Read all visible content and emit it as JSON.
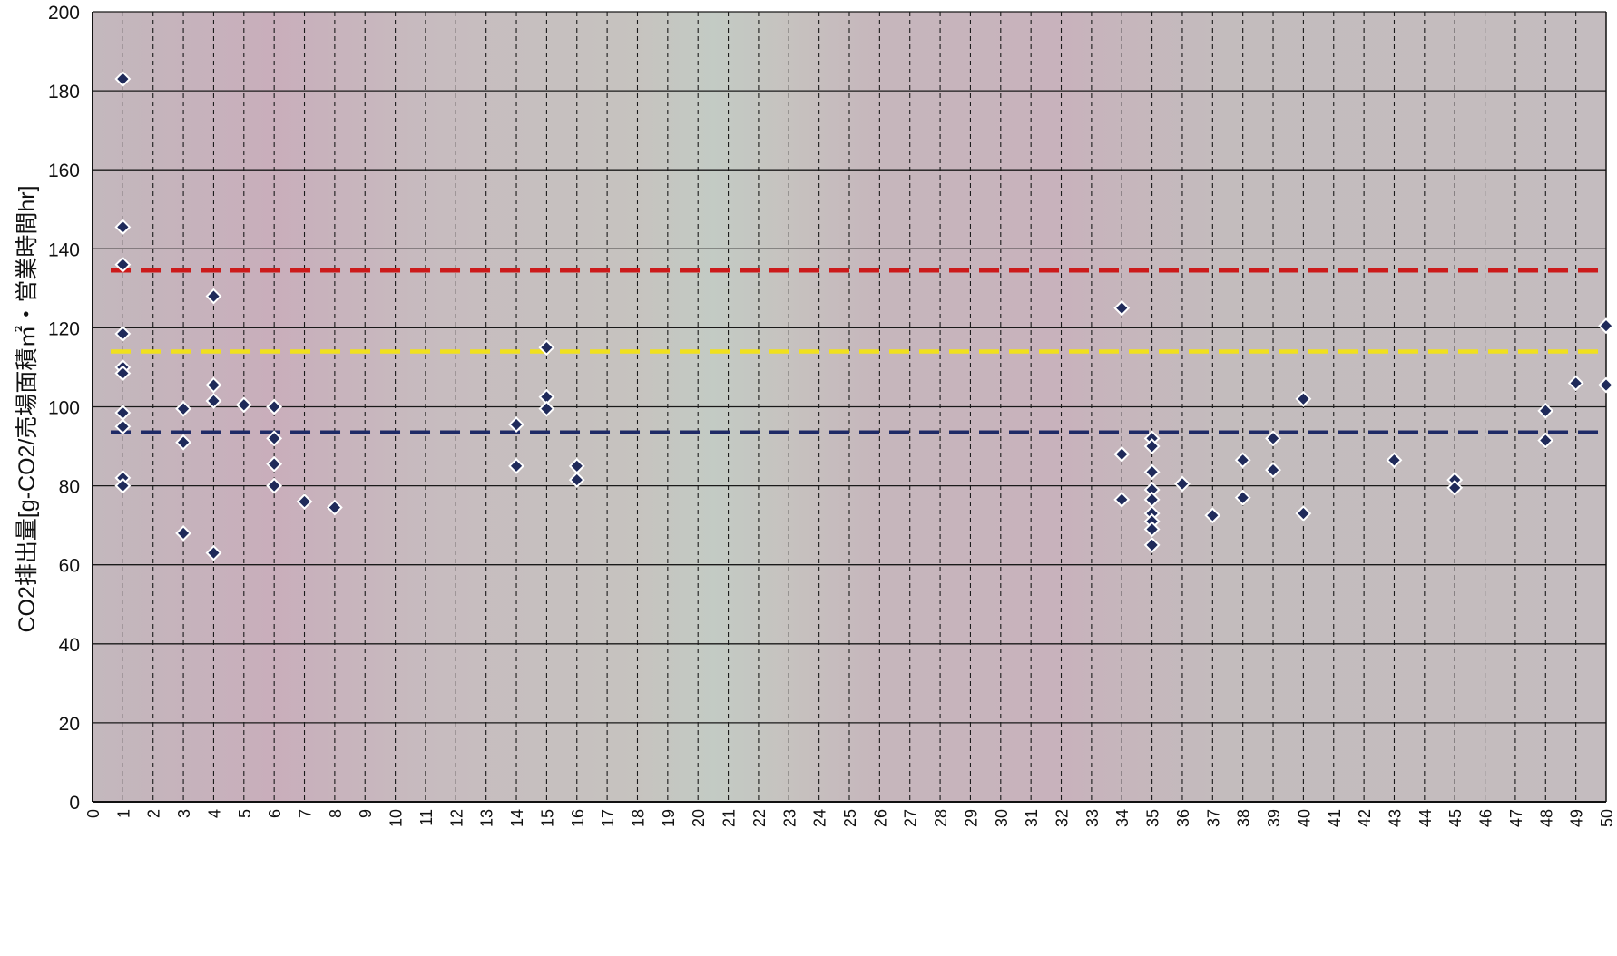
{
  "chart_data": {
    "type": "scatter",
    "title": "",
    "xlabel": "",
    "ylabel": "CO2排出量[g-CO2/売場面積㎡・営業時間hr]",
    "xlim": [
      0,
      50
    ],
    "ylim": [
      0,
      200
    ],
    "x_ticks": [
      0,
      1,
      2,
      3,
      4,
      5,
      6,
      7,
      8,
      9,
      10,
      11,
      12,
      13,
      14,
      15,
      16,
      17,
      18,
      19,
      20,
      21,
      22,
      23,
      24,
      25,
      26,
      27,
      28,
      29,
      30,
      31,
      32,
      33,
      34,
      35,
      36,
      37,
      38,
      39,
      40,
      41,
      42,
      43,
      44,
      45,
      46,
      47,
      48,
      49,
      50
    ],
    "y_ticks": [
      0,
      20,
      40,
      60,
      80,
      100,
      120,
      140,
      160,
      180,
      200
    ],
    "grid": {
      "horizontal": "solid",
      "vertical": "dashed"
    },
    "colors": {
      "plot_background": "#c4b9bd",
      "marker_fill": "#1f2a5a",
      "marker_edge": "#ffffff",
      "grid": "#1a1a1a"
    },
    "series": [
      {
        "marker": "diamond",
        "points": [
          [
            1,
            183
          ],
          [
            1,
            145.5
          ],
          [
            1,
            136
          ],
          [
            1,
            118.5
          ],
          [
            1,
            110
          ],
          [
            1,
            108.5
          ],
          [
            1,
            98.5
          ],
          [
            1,
            95
          ],
          [
            1,
            82
          ],
          [
            1,
            80
          ],
          [
            3,
            99.5
          ],
          [
            3,
            91
          ],
          [
            3,
            68
          ],
          [
            4,
            128
          ],
          [
            4,
            105.5
          ],
          [
            4,
            101.5
          ],
          [
            4,
            63
          ],
          [
            5,
            100.5
          ],
          [
            6,
            100
          ],
          [
            6,
            92
          ],
          [
            6,
            85.5
          ],
          [
            6,
            80
          ],
          [
            7,
            76
          ],
          [
            8,
            74.5
          ],
          [
            14,
            95.5
          ],
          [
            14,
            85
          ],
          [
            15,
            115
          ],
          [
            15,
            102.5
          ],
          [
            15,
            99.5
          ],
          [
            16,
            85
          ],
          [
            16,
            81.5
          ],
          [
            34,
            125
          ],
          [
            34,
            88
          ],
          [
            34,
            76.5
          ],
          [
            35,
            92
          ],
          [
            35,
            90
          ],
          [
            35,
            83.5
          ],
          [
            35,
            79
          ],
          [
            35,
            76.5
          ],
          [
            35,
            73
          ],
          [
            35,
            71
          ],
          [
            35,
            69
          ],
          [
            35,
            65
          ],
          [
            36,
            80.5
          ],
          [
            37,
            72.5
          ],
          [
            38,
            86.5
          ],
          [
            38,
            77
          ],
          [
            39,
            92
          ],
          [
            39,
            84
          ],
          [
            40,
            102
          ],
          [
            40,
            73
          ],
          [
            43,
            86.5
          ],
          [
            45,
            81.5
          ],
          [
            45,
            79.5
          ],
          [
            48,
            99
          ],
          [
            48,
            91.5
          ],
          [
            49,
            106
          ],
          [
            50,
            120.5
          ],
          [
            50,
            105.5
          ]
        ]
      }
    ],
    "reference_lines": [
      {
        "y": 134.5,
        "color": "#cc1a1a",
        "style": "dashed"
      },
      {
        "y": 114,
        "color": "#f0e01e",
        "style": "dashed"
      },
      {
        "y": 93.5,
        "color": "#1e2a66",
        "style": "dashed"
      }
    ]
  }
}
